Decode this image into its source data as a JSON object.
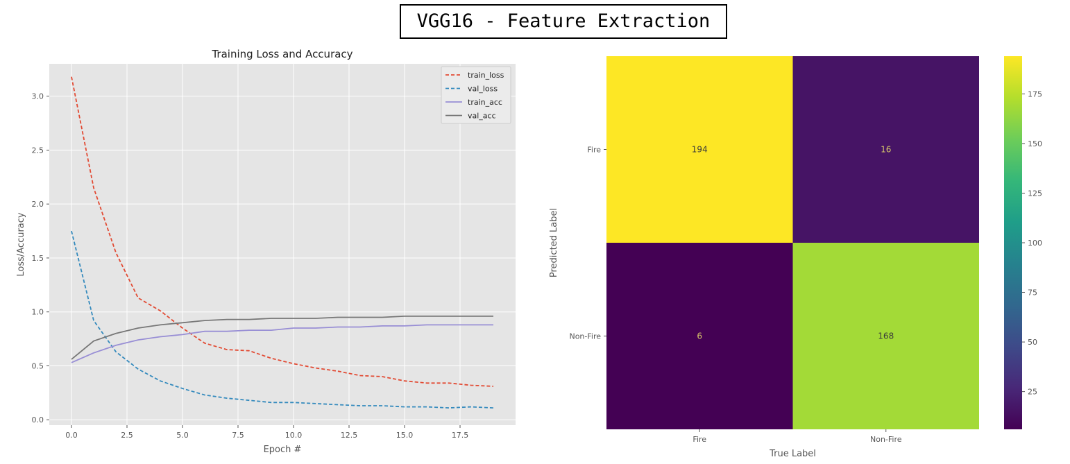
{
  "figure_title": "VGG16 - Feature Extraction",
  "colors": {
    "train_loss": "#E24A33",
    "val_loss": "#348ABD",
    "train_acc": "#988ED5",
    "val_acc": "#777777",
    "panel_bg": "#E5E5E5",
    "viridis": [
      "#440154",
      "#482878",
      "#3E4A89",
      "#31688E",
      "#26828E",
      "#1F9E89",
      "#35B779",
      "#6DCD59",
      "#B4DE2C",
      "#FDE725"
    ]
  },
  "chart_data": [
    {
      "type": "line",
      "title": "Training Loss and Accuracy",
      "xlabel": "Epoch #",
      "ylabel": "Loss/Accuracy",
      "xlim": [
        -1,
        20
      ],
      "ylim": [
        -0.05,
        3.3
      ],
      "grid": true,
      "legend_placement": "top-right",
      "xticks": [
        "0.0",
        "2.5",
        "5.0",
        "7.5",
        "10.0",
        "12.5",
        "15.0",
        "17.5"
      ],
      "xtick_values": [
        0,
        2.5,
        5,
        7.5,
        10,
        12.5,
        15,
        17.5
      ],
      "yticks": [
        "0.0",
        "0.5",
        "1.0",
        "1.5",
        "2.0",
        "2.5",
        "3.0"
      ],
      "ytick_values": [
        0,
        0.5,
        1,
        1.5,
        2,
        2.5,
        3
      ],
      "x": [
        0,
        1,
        2,
        3,
        4,
        5,
        6,
        7,
        8,
        9,
        10,
        11,
        12,
        13,
        14,
        15,
        16,
        17,
        18,
        19
      ],
      "series": [
        {
          "name": "train_loss",
          "style": "dashed",
          "values": [
            3.18,
            2.15,
            1.55,
            1.13,
            1.01,
            0.85,
            0.71,
            0.65,
            0.64,
            0.57,
            0.52,
            0.48,
            0.45,
            0.41,
            0.4,
            0.36,
            0.34,
            0.34,
            0.32,
            0.31
          ]
        },
        {
          "name": "val_loss",
          "style": "dashed",
          "values": [
            1.75,
            0.92,
            0.63,
            0.47,
            0.36,
            0.29,
            0.23,
            0.2,
            0.18,
            0.16,
            0.16,
            0.15,
            0.14,
            0.13,
            0.13,
            0.12,
            0.12,
            0.11,
            0.12,
            0.11
          ]
        },
        {
          "name": "train_acc",
          "style": "solid",
          "values": [
            0.53,
            0.62,
            0.69,
            0.74,
            0.77,
            0.79,
            0.82,
            0.82,
            0.83,
            0.83,
            0.85,
            0.85,
            0.86,
            0.86,
            0.87,
            0.87,
            0.88,
            0.88,
            0.88,
            0.88
          ]
        },
        {
          "name": "val_acc",
          "style": "solid",
          "values": [
            0.56,
            0.73,
            0.8,
            0.85,
            0.88,
            0.9,
            0.92,
            0.93,
            0.93,
            0.94,
            0.94,
            0.94,
            0.95,
            0.95,
            0.95,
            0.96,
            0.96,
            0.96,
            0.96,
            0.96
          ]
        }
      ]
    },
    {
      "type": "heatmap",
      "xlabel": "True Label",
      "ylabel": "Predicted Label",
      "x_categories": [
        "Fire",
        "Non-Fire"
      ],
      "y_categories": [
        "Fire",
        "Non-Fire"
      ],
      "values": [
        [
          194,
          16
        ],
        [
          6,
          168
        ]
      ],
      "colorbar": {
        "min": 6,
        "max": 194,
        "ticks": [
          "25",
          "50",
          "75",
          "100",
          "125",
          "150",
          "175"
        ],
        "tick_values": [
          25,
          50,
          75,
          100,
          125,
          150,
          175
        ]
      }
    }
  ]
}
